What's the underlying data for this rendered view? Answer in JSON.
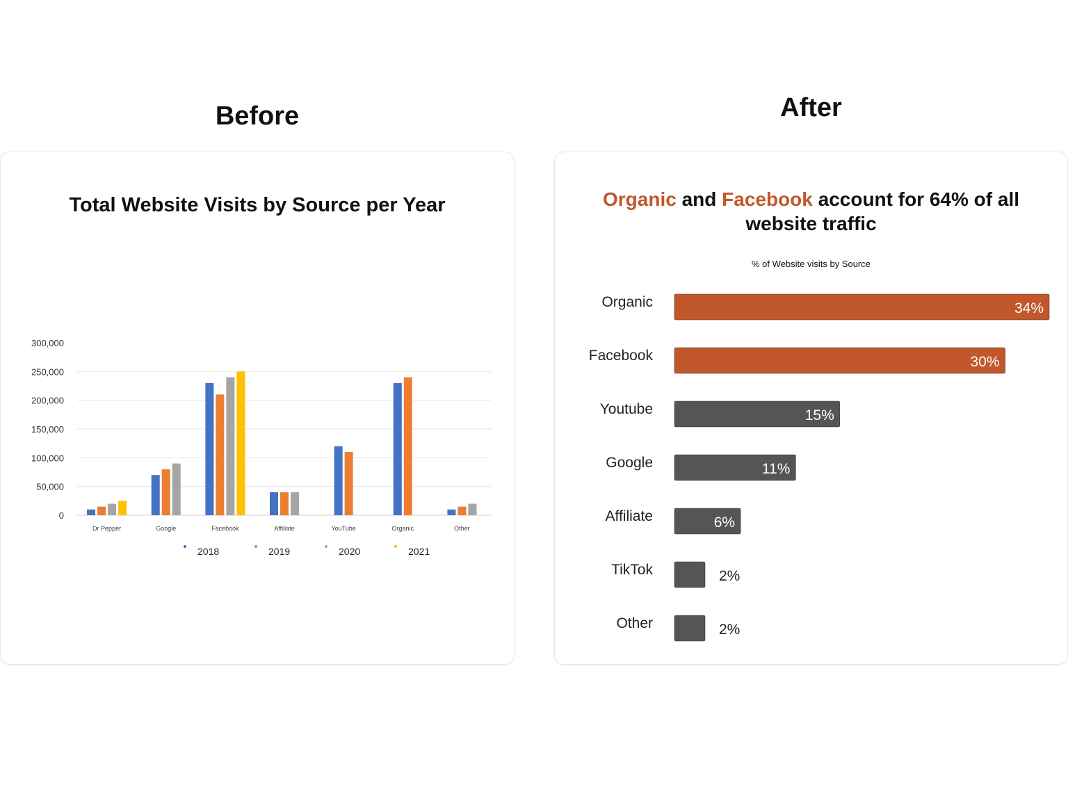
{
  "headings": {
    "before": "Before",
    "after": "After"
  },
  "before_chart": {
    "title": "Total Website Visits by Source per Year"
  },
  "after_chart": {
    "title_parts": [
      "Organic",
      " and ",
      "Facebook",
      " account for 64% of all website traffic"
    ],
    "subtitle": "% of Website visits by Source"
  },
  "colors": {
    "y2018": "#4472c4",
    "y2019": "#ed7d31",
    "y2020": "#a5a5a5",
    "y2021": "#ffc000",
    "accent": "#c1572a",
    "dark_bar": "#555555"
  },
  "chart_data": [
    {
      "type": "bar",
      "title": "Total Website Visits by Source per Year",
      "categories": [
        "Dr Pepper",
        "Google",
        "Facebook",
        "Affiliate",
        "YouTube",
        "Organic",
        "Other"
      ],
      "series": [
        {
          "name": "2018",
          "values": [
            10000,
            70000,
            230000,
            40000,
            120000,
            230000,
            10000
          ]
        },
        {
          "name": "2019",
          "values": [
            15000,
            80000,
            210000,
            40000,
            110000,
            240000,
            15000
          ]
        },
        {
          "name": "2020",
          "values": [
            20000,
            90000,
            240000,
            40000,
            null,
            null,
            20000
          ]
        },
        {
          "name": "2021",
          "values": [
            25000,
            null,
            250000,
            null,
            null,
            null,
            null
          ]
        }
      ],
      "y_ticks": [
        "300,000",
        "250,000",
        "200,000",
        "150,000",
        "100,000",
        "50,000",
        "0"
      ],
      "ylim": [
        0,
        300000
      ],
      "grid": true,
      "legend": "bottom"
    },
    {
      "type": "bar",
      "orientation": "horizontal",
      "title": "Organic and Facebook account for 64% of all website traffic",
      "subtitle": "% of Website visits by Source",
      "categories": [
        "Organic",
        "Facebook",
        "Youtube",
        "Google",
        "Affiliate",
        "TikTok",
        "Other"
      ],
      "values": [
        34,
        30,
        15,
        11,
        6,
        2,
        2
      ],
      "value_labels": [
        "34%",
        "30%",
        "15%",
        "11%",
        "6%",
        "2%",
        "2%"
      ],
      "highlighted": [
        "Organic",
        "Facebook"
      ]
    }
  ]
}
